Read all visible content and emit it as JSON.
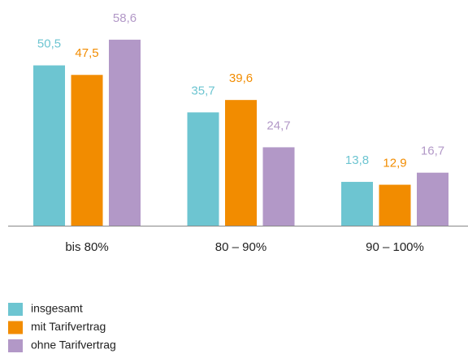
{
  "chart_data": {
    "type": "bar",
    "categories": [
      "bis 80%",
      "80 – 90%",
      "90 – 100%"
    ],
    "series": [
      {
        "name": "insgesamt",
        "color": "#6dc5d1",
        "values": [
          50.5,
          35.7,
          13.8
        ],
        "value_labels": [
          "50,5",
          "35,7",
          "13,8"
        ]
      },
      {
        "name": "mit Tarifvertrag",
        "color": "#f28c00",
        "values": [
          47.5,
          39.6,
          12.9
        ],
        "value_labels": [
          "47,5",
          "39,6",
          "12,9"
        ]
      },
      {
        "name": "ohne Tarifvertrag",
        "color": "#b298c7",
        "values": [
          58.6,
          24.7,
          16.7
        ],
        "value_labels": [
          "58,6",
          "24,7",
          "16,7"
        ]
      }
    ]
  }
}
